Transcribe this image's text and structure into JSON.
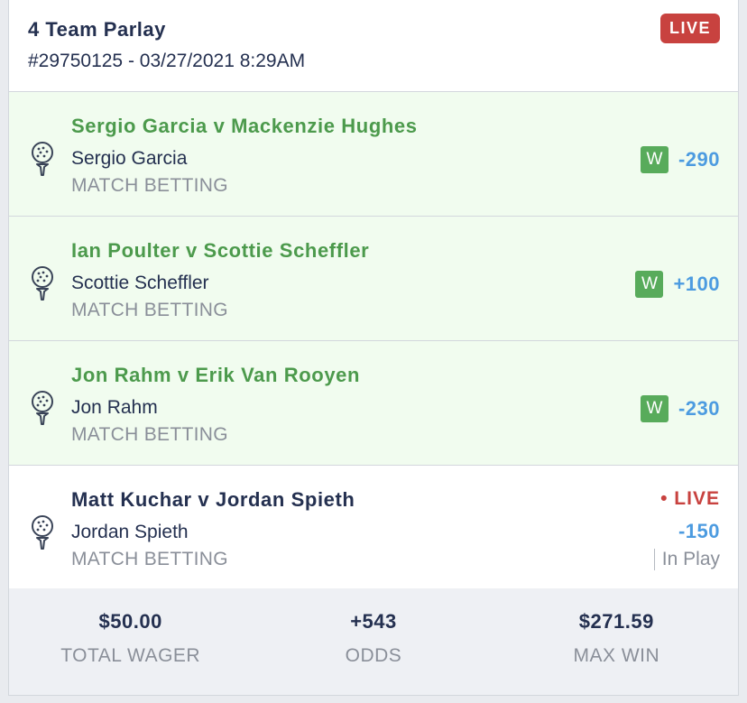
{
  "header": {
    "title": "4 Team Parlay",
    "subtitle": "#29750125 - 03/27/2021 8:29AM",
    "status_badge": "LIVE"
  },
  "legs": [
    {
      "matchup": "Sergio Garcia v Mackenzie Hughes",
      "selection": "Sergio Garcia",
      "market": "MATCH BETTING",
      "result": "W",
      "odds": "-290",
      "icon": "golf-ball-icon"
    },
    {
      "matchup": "Ian Poulter v Scottie Scheffler",
      "selection": "Scottie Scheffler",
      "market": "MATCH BETTING",
      "result": "W",
      "odds": "+100",
      "icon": "golf-ball-icon"
    },
    {
      "matchup": "Jon Rahm v Erik Van Rooyen",
      "selection": "Jon Rahm",
      "market": "MATCH BETTING",
      "result": "W",
      "odds": "-230",
      "icon": "golf-ball-icon"
    },
    {
      "matchup": "Matt Kuchar v Jordan Spieth",
      "selection": "Jordan Spieth",
      "market": "MATCH BETTING",
      "status": "• LIVE",
      "odds": "-150",
      "state": "In Play",
      "icon": "golf-ball-icon"
    }
  ],
  "footer": {
    "total_wager": {
      "value": "$50.00",
      "label": "TOTAL WAGER"
    },
    "odds": {
      "value": "+543",
      "label": "ODDS"
    },
    "max_win": {
      "value": "$271.59",
      "label": "MAX WIN"
    }
  },
  "colors": {
    "win_green": "#58ab5b",
    "matchup_green": "#4c9a4c",
    "live_red": "#c8423f",
    "odds_blue": "#4c9be0",
    "won_background": "#f1fcef"
  }
}
